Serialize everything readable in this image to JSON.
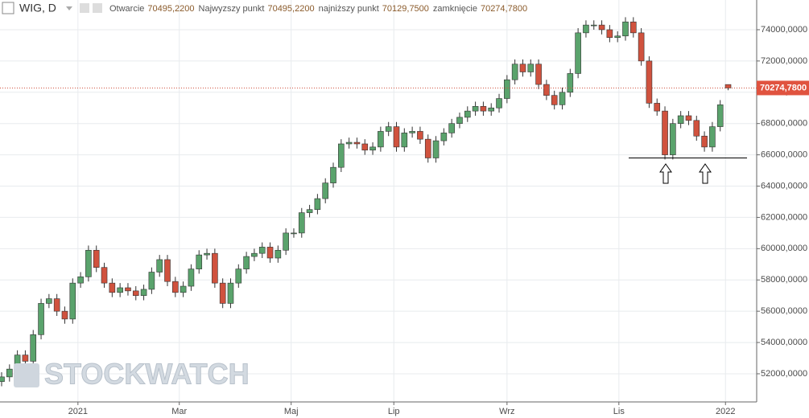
{
  "chart_data": {
    "type": "candlestick",
    "title": "WIG, D",
    "ohlc_labels": [
      {
        "name": "Otwarcie",
        "value": 70495.22,
        "label": "70495,2200"
      },
      {
        "name": "Najwyzszy punkt",
        "value": 70495.22,
        "label": "70495,2200"
      },
      {
        "name": "najniższy punkt",
        "value": 70129.75,
        "label": "70129,7500"
      },
      {
        "name": "zamknięcie",
        "value": 70274.78,
        "label": "70274,7800"
      }
    ],
    "last_price": {
      "value": 70274.78,
      "label": "70274,7800"
    },
    "watermark": "STOCKWATCH",
    "up_color": "#5aa36c",
    "down_color": "#d0523e",
    "grid": true,
    "xlim": [
      -0.61,
      286.85
    ],
    "ylim": [
      50200,
      75900
    ],
    "xticks": [
      {
        "value": 29,
        "label": "2021"
      },
      {
        "value": 67.5,
        "label": "Mar"
      },
      {
        "value": 110,
        "label": "Maj"
      },
      {
        "value": 149,
        "label": "Lip"
      },
      {
        "value": 192,
        "label": "Wrz"
      },
      {
        "value": 234.5,
        "label": "Lis"
      },
      {
        "value": 275,
        "label": "2022"
      }
    ],
    "yticks": [
      {
        "value": 52000,
        "label": "52000,0000"
      },
      {
        "value": 54000,
        "label": "54000,0000"
      },
      {
        "value": 56000,
        "label": "56000,0000"
      },
      {
        "value": 58000,
        "label": "58000,0000"
      },
      {
        "value": 60000,
        "label": "60000,0000"
      },
      {
        "value": 62000,
        "label": "62000,0000"
      },
      {
        "value": 64000,
        "label": "64000,0000"
      },
      {
        "value": 66000,
        "label": "66000,0000"
      },
      {
        "value": 68000,
        "label": "68000,0000"
      },
      {
        "value": 70000,
        "label": "70000,0000"
      },
      {
        "value": 72000,
        "label": "72000,0000"
      },
      {
        "value": 74000,
        "label": "74000,0000"
      }
    ],
    "x": [
      0,
      3,
      6,
      9,
      12,
      15,
      18,
      21,
      24,
      27,
      30,
      33,
      36,
      39,
      42,
      45,
      48,
      51,
      54,
      57,
      60,
      63,
      66,
      69,
      72,
      75,
      78,
      81,
      84,
      87,
      90,
      93,
      96,
      99,
      102,
      105,
      108,
      111,
      114,
      117,
      120,
      123,
      126,
      129,
      132,
      135,
      138,
      141,
      144,
      147,
      150,
      153,
      156,
      159,
      162,
      165,
      168,
      171,
      174,
      177,
      180,
      183,
      186,
      189,
      192,
      195,
      198,
      201,
      204,
      207,
      210,
      213,
      216,
      219,
      222,
      225,
      228,
      231,
      234,
      237,
      240,
      243,
      246,
      249,
      252,
      255,
      258,
      261,
      264,
      267,
      270,
      273,
      276
    ],
    "open": [
      51500,
      51800,
      52300,
      53200,
      52800,
      54500,
      56500,
      56800,
      56000,
      55500,
      57800,
      58200,
      59900,
      58800,
      57800,
      57200,
      57500,
      57300,
      57000,
      57400,
      58500,
      59300,
      57900,
      57200,
      57600,
      58700,
      59600,
      59700,
      57800,
      56500,
      57800,
      58700,
      59500,
      59700,
      60100,
      59400,
      59900,
      61000,
      61000,
      62300,
      62500,
      63200,
      64200,
      65200,
      66700,
      66800,
      66700,
      66300,
      66500,
      67500,
      67800,
      66500,
      67400,
      67500,
      67000,
      65800,
      66900,
      67400,
      68000,
      68400,
      68800,
      69100,
      68800,
      69000,
      69600,
      70800,
      71800,
      71300,
      71800,
      70500,
      69800,
      69200,
      70000,
      71200,
      73800,
      74300,
      74300,
      74000,
      73500,
      73600,
      74500,
      73800,
      72000,
      69300,
      68800,
      66000,
      68000,
      68500,
      68200,
      67200,
      66500,
      67800,
      70495.22
    ],
    "high": [
      52100,
      52600,
      53500,
      53500,
      54800,
      56800,
      57100,
      57100,
      56300,
      58100,
      58500,
      60200,
      60200,
      59100,
      58100,
      57800,
      57800,
      57600,
      57700,
      58800,
      59600,
      59600,
      58200,
      57900,
      59000,
      59900,
      60000,
      60000,
      58100,
      58100,
      59000,
      59800,
      60000,
      60400,
      60400,
      60200,
      61300,
      61300,
      62600,
      62800,
      63500,
      64500,
      65500,
      67000,
      67100,
      67100,
      67000,
      66800,
      67800,
      68100,
      68100,
      67700,
      67800,
      67800,
      67300,
      67200,
      67700,
      68300,
      68700,
      69100,
      69400,
      69400,
      69300,
      69900,
      71100,
      72100,
      72100,
      72100,
      72100,
      70800,
      70100,
      70300,
      71500,
      74100,
      74600,
      74600,
      74600,
      74300,
      73900,
      74800,
      74800,
      74100,
      72300,
      69600,
      69100,
      68300,
      68800,
      68800,
      68500,
      67500,
      68100,
      69500,
      70495.22
    ],
    "low": [
      51200,
      51500,
      52000,
      52500,
      52500,
      54200,
      56200,
      55700,
      55200,
      55200,
      57500,
      57900,
      58500,
      57500,
      56900,
      56900,
      57000,
      56700,
      56700,
      57100,
      58200,
      57600,
      56900,
      56900,
      57300,
      58400,
      59300,
      57500,
      56200,
      56200,
      57500,
      58400,
      59200,
      59400,
      59100,
      59100,
      59600,
      60700,
      60700,
      62000,
      62200,
      62900,
      63900,
      64900,
      66400,
      66400,
      66000,
      66000,
      66200,
      67200,
      66200,
      66200,
      67100,
      66700,
      65500,
      65500,
      66600,
      67100,
      67700,
      68100,
      68500,
      68500,
      68500,
      68700,
      69300,
      70500,
      71000,
      71000,
      70200,
      69500,
      68900,
      68900,
      69700,
      70900,
      73500,
      74000,
      73700,
      73200,
      73200,
      73300,
      73500,
      71700,
      69000,
      68500,
      65700,
      65700,
      67700,
      67900,
      66900,
      66200,
      66200,
      67500,
      70129.75
    ],
    "close": [
      51800,
      52300,
      53200,
      52800,
      54500,
      56500,
      56800,
      56000,
      55500,
      57800,
      58200,
      59900,
      58800,
      57800,
      57200,
      57500,
      57300,
      57000,
      57400,
      58500,
      59300,
      57900,
      57200,
      57600,
      58700,
      59600,
      59700,
      57800,
      56500,
      57800,
      58700,
      59500,
      59700,
      60100,
      59400,
      59900,
      61000,
      61000,
      62300,
      62500,
      63200,
      64200,
      65200,
      66700,
      66800,
      66700,
      66300,
      66500,
      67500,
      67800,
      66500,
      67400,
      67500,
      67000,
      65800,
      66900,
      67400,
      68000,
      68400,
      68800,
      69100,
      68800,
      69000,
      69600,
      70800,
      71800,
      71300,
      71800,
      70500,
      69800,
      69200,
      70000,
      71200,
      73800,
      74300,
      74300,
      74000,
      73500,
      73600,
      74500,
      73800,
      72000,
      69300,
      68800,
      66000,
      68000,
      68500,
      68200,
      67200,
      66500,
      67800,
      69200,
      70274.78
    ]
  }
}
